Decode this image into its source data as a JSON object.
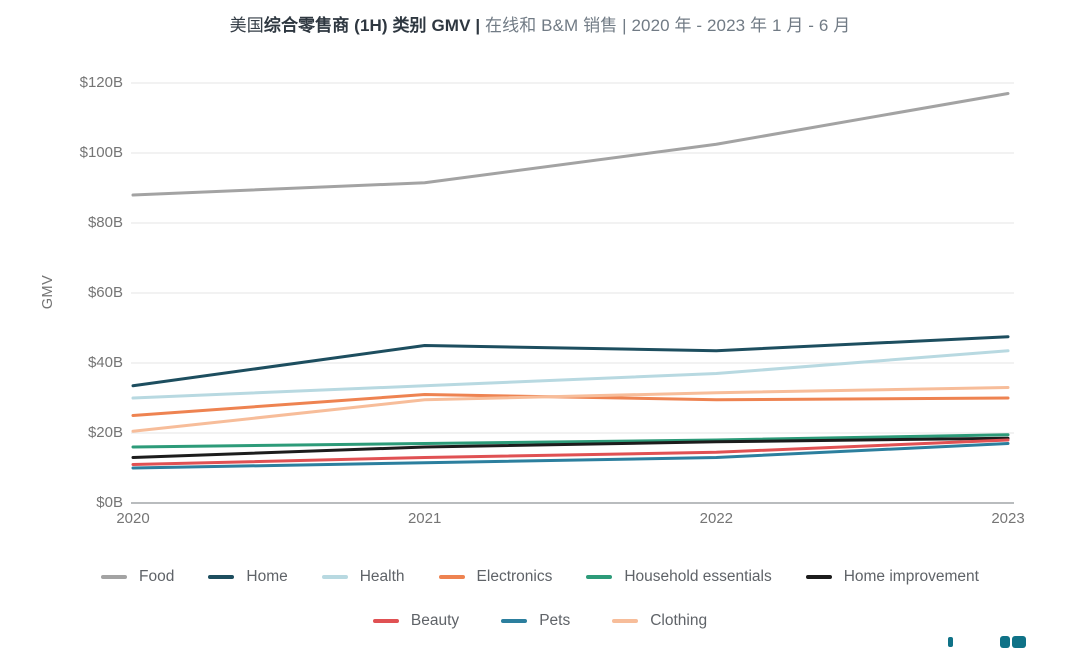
{
  "title": {
    "prefix": "美国",
    "bold": "综合零售商 (1H) 类别 GMV |",
    "rest": " 在线和 B&M 销售 | 2020 年 - 2023 年 1 月 - 6 月"
  },
  "chart_data": {
    "type": "line",
    "x": [
      2020,
      2021,
      2022,
      2023
    ],
    "xtick_labels": [
      "2020",
      "2021",
      "2022",
      "2023"
    ],
    "ylabel": "GMV",
    "ylim": [
      0,
      120
    ],
    "ytick_values": [
      0,
      20,
      40,
      60,
      80,
      100,
      120
    ],
    "ytick_labels": [
      "$0B",
      "$20B",
      "$40B",
      "$60B",
      "$80B",
      "$100B",
      "$120B"
    ],
    "grid": "horizontal",
    "legend_position": "bottom",
    "legend_rows": [
      6,
      3
    ],
    "series": [
      {
        "name": "Food",
        "color": "#a3a3a3",
        "values": [
          88,
          91.5,
          102.5,
          117
        ]
      },
      {
        "name": "Home",
        "color": "#1d4e5f",
        "values": [
          33.5,
          45,
          43.5,
          47.5
        ]
      },
      {
        "name": "Health",
        "color": "#b8d9e1",
        "values": [
          30,
          33.5,
          37,
          43.5
        ]
      },
      {
        "name": "Electronics",
        "color": "#ee8351",
        "values": [
          25,
          31,
          29.5,
          30
        ]
      },
      {
        "name": "Household essentials",
        "color": "#2d9b79",
        "values": [
          16,
          17,
          18,
          19.5
        ]
      },
      {
        "name": "Home improvement",
        "color": "#1c1c1c",
        "values": [
          13,
          16,
          17.5,
          18.5
        ]
      },
      {
        "name": "Beauty",
        "color": "#e05153",
        "values": [
          11,
          13,
          14.5,
          18
        ]
      },
      {
        "name": "Pets",
        "color": "#2c7f9e",
        "values": [
          10,
          11.5,
          13,
          17
        ]
      },
      {
        "name": "Clothing",
        "color": "#f7bd9a",
        "values": [
          20.5,
          29.5,
          31.5,
          33
        ]
      }
    ],
    "axis_colors": {
      "gridline": "#e9e9e9",
      "axis_line": "#b9bcbe",
      "tick_text": "#757575"
    }
  },
  "watermark": {
    "name": "partner-logo-cropped",
    "color": "#0f7287"
  }
}
